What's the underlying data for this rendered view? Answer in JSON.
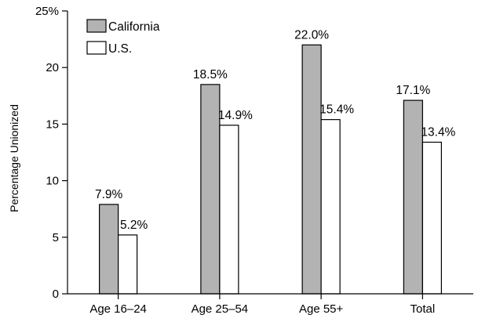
{
  "chart_data": {
    "type": "bar",
    "title": "",
    "xlabel": "",
    "ylabel": "Percentage Unionized",
    "ylim": [
      0,
      25
    ],
    "yticks": [
      0,
      5,
      10,
      15,
      20,
      25
    ],
    "ytick_labels": [
      "0",
      "5",
      "10",
      "15",
      "20",
      "25%"
    ],
    "categories": [
      "Age 16–24",
      "Age 25–54",
      "Age 55+",
      "Total"
    ],
    "series": [
      {
        "name": "California",
        "color": "#b3b3b3",
        "values": [
          7.9,
          18.5,
          22.0,
          17.1
        ],
        "labels": [
          "7.9%",
          "18.5%",
          "22.0%",
          "17.1%"
        ]
      },
      {
        "name": "U.S.",
        "color": "#ffffff",
        "values": [
          5.2,
          14.9,
          15.4,
          13.4
        ],
        "labels": [
          "5.2%",
          "14.9%",
          "15.4%",
          "13.4%"
        ]
      }
    ],
    "legend_position": "top-left",
    "grid": false
  }
}
